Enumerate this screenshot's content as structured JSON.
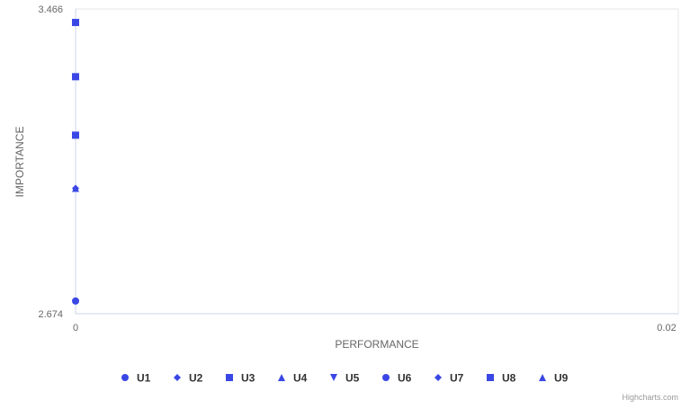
{
  "chart_data": {
    "type": "scatter",
    "xlabel": "PERFORMANCE",
    "ylabel": "IMPORTANCE",
    "xlim": [
      0,
      0.02
    ],
    "ylim": [
      2.674,
      3.466
    ],
    "x_ticks": [
      "0",
      "0.02"
    ],
    "y_ticks": [
      "2.674",
      "3.466"
    ],
    "grid": false,
    "legend_position": "bottom-center",
    "series": [
      {
        "name": "U1",
        "symbol": "circle",
        "color": "#3a47e5",
        "points": [
          {
            "x": 0,
            "y": 2.707
          }
        ]
      },
      {
        "name": "U2",
        "symbol": "diamond",
        "color": "#3a47e5",
        "points": [
          {
            "x": 0,
            "y": 3.0
          }
        ]
      },
      {
        "name": "U3",
        "symbol": "square",
        "color": "#3a47e5",
        "points": [
          {
            "x": 0,
            "y": 3.431
          }
        ]
      },
      {
        "name": "U4",
        "symbol": "triangle",
        "color": "#3a47e5",
        "points": [
          {
            "x": 0,
            "y": 3.0
          }
        ]
      },
      {
        "name": "U5",
        "symbol": "triangle-down",
        "color": "#3a47e5",
        "points": []
      },
      {
        "name": "U6",
        "symbol": "circle",
        "color": "#3a47e5",
        "points": []
      },
      {
        "name": "U7",
        "symbol": "diamond",
        "color": "#3a47e5",
        "points": []
      },
      {
        "name": "U8",
        "symbol": "square",
        "color": "#3a47e5",
        "points": [
          {
            "x": 0,
            "y": 3.29
          },
          {
            "x": 0,
            "y": 3.138
          }
        ]
      },
      {
        "name": "U9",
        "symbol": "triangle",
        "color": "#3a47e5",
        "points": []
      }
    ]
  },
  "credits": "Highcharts.com",
  "colors": {
    "marker": "#3a47e5",
    "axis_line": "#ccd6eb",
    "plot_border": "#e6e6e6",
    "text": "#666666",
    "legend_text": "#333333",
    "credits": "#999999"
  }
}
